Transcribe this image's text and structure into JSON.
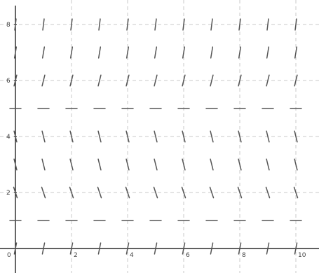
{
  "chart_data": {
    "type": "scatter",
    "plot_kind": "slope-field",
    "xlim": [
      0,
      10.5
    ],
    "ylim": [
      -0.3,
      8.6
    ],
    "grid": true,
    "x_ticks": [
      {
        "value": 0,
        "label": "0"
      },
      {
        "value": 2,
        "label": "2"
      },
      {
        "value": 4,
        "label": "4"
      },
      {
        "value": 6,
        "label": "6"
      },
      {
        "value": 8,
        "label": "8"
      },
      {
        "value": 10,
        "label": "10"
      }
    ],
    "y_ticks": [
      {
        "value": 2,
        "label": "2"
      },
      {
        "value": 4,
        "label": "4"
      },
      {
        "value": 6,
        "label": "6"
      },
      {
        "value": 8,
        "label": "8"
      }
    ],
    "x_samples": [
      0,
      1,
      2,
      3,
      4,
      5,
      6,
      7,
      8,
      9,
      10
    ],
    "rows": [
      {
        "y": 8,
        "slope": 8
      },
      {
        "y": 7,
        "slope": 6
      },
      {
        "y": 6,
        "slope": 4
      },
      {
        "y": 5,
        "slope": 0
      },
      {
        "y": 4,
        "slope": -4
      },
      {
        "y": 3,
        "slope": -4
      },
      {
        "y": 2,
        "slope": -3
      },
      {
        "y": 1,
        "slope": 0
      },
      {
        "y": 0,
        "slope": 5
      }
    ],
    "colors": {
      "segment": "#555555",
      "grid": "#c8c8c8",
      "axis": "#000000",
      "tick_label": "#444444"
    }
  }
}
